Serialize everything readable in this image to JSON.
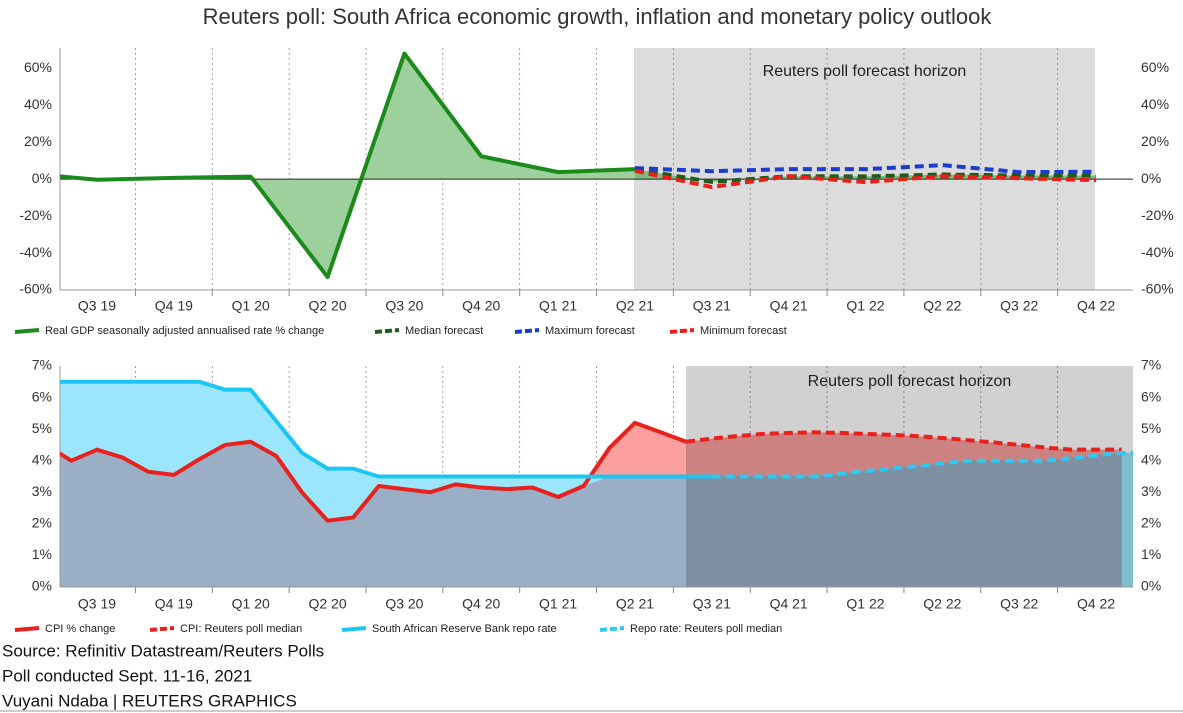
{
  "chart_data": [
    {
      "type": "line",
      "title": "Reuters poll: South Africa economic growth, inflation and monetary policy outlook",
      "annotation": "Reuters poll forecast horizon",
      "categories": [
        null,
        "Q3 19",
        "Q4 19",
        "Q1 20",
        "Q2 20",
        "Q3 20",
        "Q4 20",
        "Q1 21",
        "Q2 21",
        "Q3 21",
        "Q4 21",
        "Q1 22",
        "Q2 22",
        "Q3 22",
        "Q4 22"
      ],
      "ylim": [
        -60,
        71
      ],
      "yticks": [
        {
          "value": 60,
          "label": "60%"
        },
        {
          "value": 40,
          "label": "40%"
        },
        {
          "value": 20,
          "label": "20%"
        },
        {
          "value": 0,
          "label": "0%"
        },
        {
          "value": -20,
          "label": "-20%"
        },
        {
          "value": -40,
          "label": "-40%"
        },
        {
          "value": -60,
          "label": "-60%"
        }
      ],
      "series": [
        {
          "name": "Real GDP seasonally adjusted annualised rate % change",
          "color": "#1a8a1a",
          "fill": "#9dd09d",
          "dashed": false,
          "values": [
            3.4,
            -0.3,
            0.7,
            1.4,
            -53,
            68,
            12.4,
            3.8,
            5.4,
            null,
            null,
            null,
            null,
            null,
            null
          ]
        },
        {
          "name": "Median forecast",
          "color": "#1e5c1e",
          "fill": "#7cbd7c",
          "dashed": true,
          "values": [
            null,
            null,
            null,
            null,
            null,
            null,
            null,
            null,
            5.4,
            -1.5,
            1.6,
            1.5,
            2.5,
            2.0,
            2.0
          ]
        },
        {
          "name": "Maximum forecast",
          "color": "#1c3ccf",
          "dashed": true,
          "values": [
            null,
            null,
            null,
            null,
            null,
            null,
            null,
            null,
            6.0,
            4.3,
            5.4,
            5.4,
            7.6,
            3.8,
            4.0
          ]
        },
        {
          "name": "Minimum forecast",
          "color": "#e8201c",
          "dashed": true,
          "values": [
            null,
            null,
            null,
            null,
            null,
            null,
            null,
            null,
            4.5,
            -4.3,
            1.6,
            -1.6,
            1.6,
            0.5,
            -0.5
          ]
        }
      ]
    },
    {
      "type": "line",
      "annotation": "Reuters poll forecast horizon",
      "categories": [
        null,
        null,
        "Q3 19",
        null,
        null,
        "Q4 19",
        null,
        null,
        "Q1 20",
        null,
        null,
        "Q2 20",
        null,
        null,
        "Q3 20",
        null,
        null,
        "Q4 20",
        null,
        null,
        "Q1 21",
        null,
        null,
        "Q2 21",
        null,
        null,
        "Q3 21",
        null,
        null,
        "Q4 21",
        null,
        null,
        "Q1 22",
        null,
        null,
        "Q2 22",
        null,
        null,
        "Q3 22",
        null,
        null,
        "Q4 22",
        null,
        null
      ],
      "ylim": [
        0,
        7
      ],
      "yticks": [
        {
          "value": 7,
          "label": "7%"
        },
        {
          "value": 6,
          "label": "6%"
        },
        {
          "value": 5,
          "label": "5%"
        },
        {
          "value": 4,
          "label": "4%"
        },
        {
          "value": 3,
          "label": "3%"
        },
        {
          "value": 2,
          "label": "2%"
        },
        {
          "value": 1,
          "label": "1%"
        },
        {
          "value": 0,
          "label": "0%"
        }
      ],
      "overlap_fill": "#9aafc6",
      "series": [
        {
          "name": "CPI % change",
          "color": "#e8211d",
          "fill": "#fb9f9f",
          "dashed": false,
          "values": [
            4.5,
            4.0,
            4.35,
            4.1,
            3.65,
            3.55,
            4.05,
            4.5,
            4.6,
            4.15,
            3.0,
            2.1,
            2.2,
            3.2,
            3.1,
            3.0,
            3.25,
            3.15,
            3.1,
            3.15,
            2.85,
            3.2,
            4.4,
            5.2,
            4.9,
            4.6,
            null,
            null,
            null,
            null,
            null,
            null,
            null,
            null,
            null,
            null,
            null,
            null,
            null,
            null,
            null,
            null,
            null,
            null
          ]
        },
        {
          "name": "CPI: Reuters poll median",
          "color": "#e8211d",
          "fill": "#fb9f9f",
          "dashed": true,
          "values": [
            null,
            null,
            null,
            null,
            null,
            null,
            null,
            null,
            null,
            null,
            null,
            null,
            null,
            null,
            null,
            null,
            null,
            null,
            null,
            null,
            null,
            null,
            null,
            null,
            null,
            4.6,
            4.7,
            4.78,
            4.85,
            4.88,
            4.9,
            4.88,
            4.85,
            4.82,
            4.78,
            4.72,
            4.65,
            4.58,
            4.5,
            4.42,
            4.35,
            4.35,
            4.35,
            null
          ]
        },
        {
          "name": "South African Reserve Bank repo rate",
          "color": "#1cc6f2",
          "fill": "#9be6fb",
          "dashed": false,
          "values": [
            6.5,
            6.5,
            6.5,
            6.5,
            6.5,
            6.5,
            6.5,
            6.25,
            6.25,
            5.25,
            4.25,
            3.75,
            3.75,
            3.5,
            3.5,
            3.5,
            3.5,
            3.5,
            3.5,
            3.5,
            3.5,
            3.5,
            3.5,
            3.5,
            3.5,
            3.5,
            3.5,
            null,
            null,
            null,
            null,
            null,
            null,
            null,
            null,
            null,
            null,
            null,
            null,
            null,
            null,
            null,
            null,
            null
          ]
        },
        {
          "name": "Repo rate: Reuters poll median",
          "color": "#2ec8f0",
          "fill": "#9be6fb",
          "dashed": true,
          "values": [
            null,
            null,
            null,
            null,
            null,
            null,
            null,
            null,
            null,
            null,
            null,
            null,
            null,
            null,
            null,
            null,
            null,
            null,
            null,
            null,
            null,
            null,
            null,
            null,
            null,
            null,
            3.5,
            3.5,
            3.5,
            3.5,
            3.5,
            3.58,
            3.67,
            3.75,
            3.83,
            3.92,
            4.0,
            4.0,
            4.0,
            4.0,
            4.08,
            4.17,
            4.25,
            4.25
          ]
        }
      ]
    }
  ],
  "notes": [
    "Source: Refinitiv Datastream/Reuters Polls",
    "Poll conducted Sept. 11-16, 2021",
    "Vuyani Ndaba | REUTERS GRAPHICS"
  ]
}
